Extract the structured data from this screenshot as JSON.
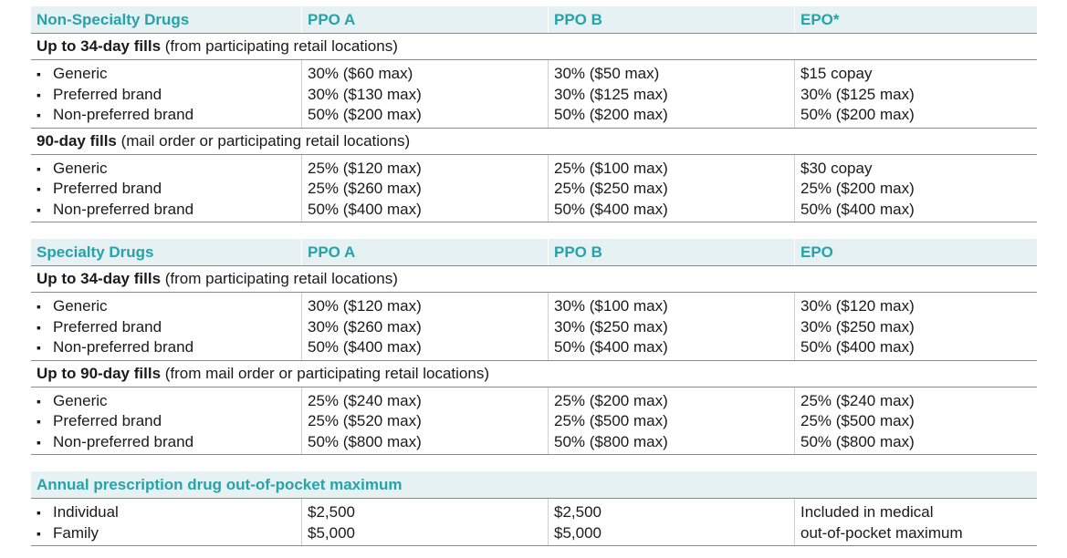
{
  "non_specialty": {
    "title": "Non-Specialty Drugs",
    "cols": [
      "PPO A",
      "PPO B",
      "EPO*"
    ],
    "groups": [
      {
        "label_bold": "Up to 34-day fills",
        "label_rest": " (from participating retail locations)",
        "items": [
          "Generic",
          "Preferred brand",
          "Non-preferred brand"
        ],
        "ppo_a": [
          "30% ($60 max)",
          "30% ($130 max)",
          "50% ($200 max)"
        ],
        "ppo_b": [
          "30% ($50 max)",
          "30% ($125 max)",
          "50% ($200 max)"
        ],
        "epo": [
          "$15 copay",
          "30% ($125 max)",
          "50% ($200 max)"
        ]
      },
      {
        "label_bold": "90-day fills",
        "label_rest": " (mail order or participating retail locations)",
        "items": [
          "Generic",
          "Preferred brand",
          "Non-preferred brand"
        ],
        "ppo_a": [
          "25% ($120 max)",
          "25% ($260 max)",
          "50% ($400 max)"
        ],
        "ppo_b": [
          "25% ($100 max)",
          "25% ($250 max)",
          "50% ($400 max)"
        ],
        "epo": [
          "$30 copay",
          "25% ($200 max)",
          "50% ($400 max)"
        ]
      }
    ]
  },
  "specialty": {
    "title": "Specialty Drugs",
    "cols": [
      "PPO A",
      "PPO B",
      "EPO"
    ],
    "groups": [
      {
        "label_bold": "Up to 34-day fills",
        "label_rest": " (from participating retail locations)",
        "items": [
          "Generic",
          "Preferred brand",
          "Non-preferred brand"
        ],
        "ppo_a": [
          "30% ($120 max)",
          "30% ($260 max)",
          "50% ($400 max)"
        ],
        "ppo_b": [
          "30% ($100 max)",
          "30% ($250 max)",
          "50% ($400 max)"
        ],
        "epo": [
          "30% ($120 max)",
          "30% ($250 max)",
          "50% ($400 max)"
        ]
      },
      {
        "label_bold": "Up to 90-day fills",
        "label_rest": " (from mail order or participating retail locations)",
        "items": [
          "Generic",
          "Preferred brand",
          "Non-preferred brand"
        ],
        "ppo_a": [
          "25% ($240 max)",
          "25% ($520 max)",
          "50% ($800 max)"
        ],
        "ppo_b": [
          "25% ($200 max)",
          "25% ($500 max)",
          "50% ($800 max)"
        ],
        "epo": [
          "25% ($240 max)",
          "25% ($500 max)",
          "50% ($800 max)"
        ]
      }
    ]
  },
  "oop": {
    "title": "Annual prescription drug out-of-pocket maximum",
    "items": [
      "Individual",
      "Family"
    ],
    "ppo_a": [
      "$2,500",
      "$5,000"
    ],
    "ppo_b": [
      "$2,500",
      "$5,000"
    ],
    "epo": [
      "Included in medical",
      "out-of-pocket maximum"
    ]
  }
}
